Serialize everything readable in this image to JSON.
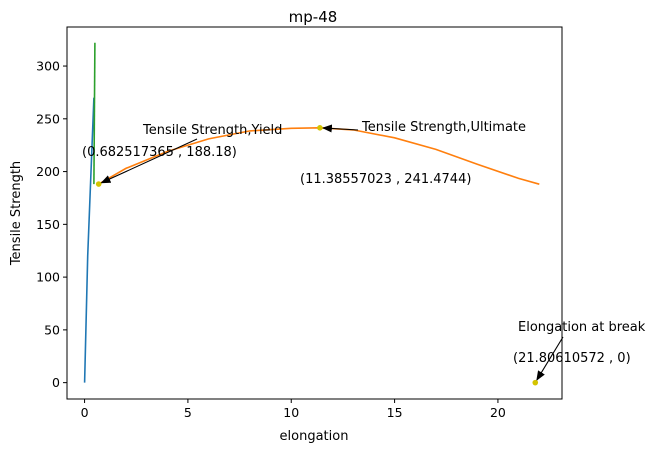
{
  "chart_data": {
    "type": "line",
    "title": "mp-48",
    "xlabel": "elongation",
    "ylabel": "Tensile Strength",
    "xlim": [
      -0.85,
      23.1
    ],
    "ylim": [
      -15.5,
      337
    ],
    "xticks": [
      0,
      5,
      10,
      15,
      20
    ],
    "yticks": [
      0,
      50,
      100,
      150,
      200,
      250,
      300
    ],
    "grid": false,
    "colors": {
      "elastic": "#1f77b4",
      "plastic": "#ff7f0e",
      "offset": "#2ca02c",
      "marker": "#d4c400",
      "annotation": "#000000"
    },
    "series": [
      {
        "id": "elastic",
        "x": [
          0,
          0.15,
          0.3,
          0.45
        ],
        "y": [
          0,
          120,
          195,
          270
        ]
      },
      {
        "id": "plastic",
        "x": [
          0.682517365,
          2,
          4,
          6,
          8,
          10,
          11.38557023,
          13,
          15,
          17,
          19,
          21,
          22
        ],
        "y": [
          188.18,
          203,
          219,
          231,
          238.5,
          241,
          241.4744,
          239.5,
          232,
          221,
          207,
          193.5,
          188
        ]
      },
      {
        "id": "offset",
        "x": [
          0.45,
          0.5
        ],
        "y": [
          188.18,
          322
        ]
      }
    ],
    "points": [
      {
        "x": 0.682517365,
        "y": 188.18
      },
      {
        "x": 11.38557023,
        "y": 241.4744
      },
      {
        "x": 21.80610572,
        "y": 0
      }
    ],
    "annotations": [
      {
        "label": "Tensile Strength,Yield",
        "coords": "(0.682517365 , 188.18)",
        "x": 0.682517365,
        "y": 188.18
      },
      {
        "label": "Tensile Strength,Ultimate",
        "coords": "(11.38557023 , 241.4744)",
        "x": 11.38557023,
        "y": 241.4744
      },
      {
        "label": "Elongation at break",
        "coords": "(21.80610572 , 0)",
        "x": 21.80610572,
        "y": 0
      }
    ]
  }
}
